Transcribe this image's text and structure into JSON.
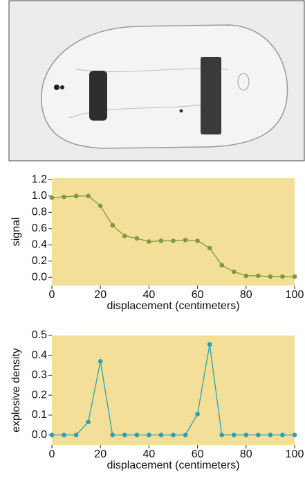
{
  "chart_data": [
    {
      "type": "line",
      "xlabel": "displacement (centimeters)",
      "ylabel": "signal",
      "x": [
        0,
        5,
        10,
        15,
        20,
        25,
        30,
        35,
        40,
        45,
        50,
        55,
        60,
        65,
        70,
        75,
        80,
        85,
        90,
        95,
        100
      ],
      "values": [
        0.98,
        0.99,
        1.0,
        1.0,
        0.88,
        0.64,
        0.51,
        0.48,
        0.44,
        0.45,
        0.45,
        0.46,
        0.45,
        0.36,
        0.15,
        0.07,
        0.02,
        0.02,
        0.01,
        0.01,
        0.01
      ],
      "color": "#7f9a3c",
      "background": "#f3df97",
      "xlim": [
        0,
        100
      ],
      "xticks": [
        0,
        20,
        40,
        60,
        80,
        100
      ],
      "ylim": [
        -0.1,
        1.22
      ],
      "yticks": [
        {
          "value": 0,
          "label": "0.0"
        },
        0.2,
        0.4,
        0.6,
        0.8,
        {
          "value": 1,
          "label": "1.0"
        },
        1.2
      ]
    },
    {
      "type": "line",
      "xlabel": "displacement (centimeters)",
      "ylabel": "explosive density",
      "x": [
        0,
        5,
        10,
        15,
        20,
        25,
        30,
        35,
        40,
        45,
        50,
        55,
        60,
        65,
        70,
        75,
        80,
        85,
        90,
        95,
        100
      ],
      "values": [
        0,
        0,
        0,
        0.065,
        0.37,
        0,
        0,
        0,
        0,
        0,
        0,
        0,
        0.105,
        0.455,
        0,
        0,
        0,
        0,
        0,
        0,
        0
      ],
      "color": "#2aa0b8",
      "background": "#f3df97",
      "xlim": [
        0,
        100
      ],
      "xticks": [
        0,
        20,
        40,
        60,
        80,
        100
      ],
      "ylim": [
        -0.05,
        0.5
      ],
      "yticks": [
        {
          "value": 0,
          "label": "0.0"
        },
        0.1,
        0.2,
        0.3,
        0.4,
        0.5
      ]
    }
  ]
}
